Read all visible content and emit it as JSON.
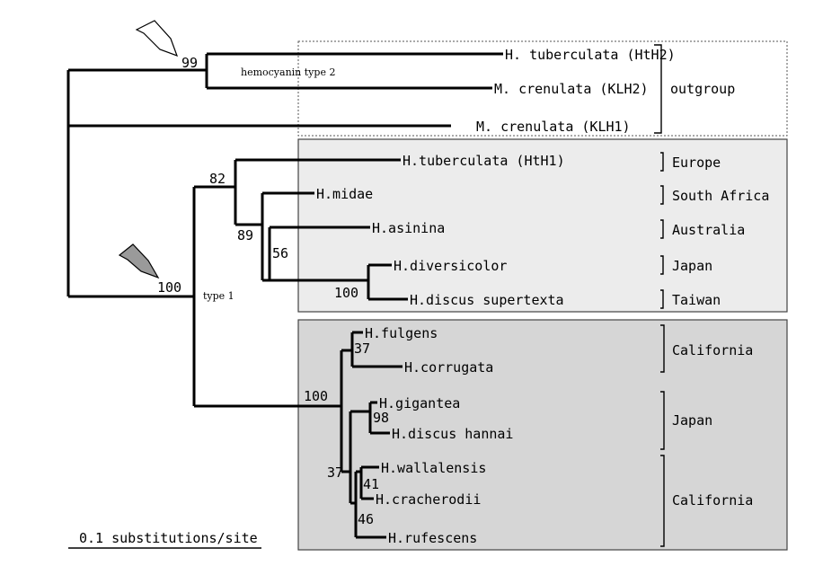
{
  "tree": {
    "taxa": [
      {
        "id": "htH2",
        "label": "H. tuberculata (HtH2)"
      },
      {
        "id": "klh2",
        "label": "M. crenulata (KLH2)"
      },
      {
        "id": "klh1",
        "label": "M. crenulata (KLH1)"
      },
      {
        "id": "htH1",
        "label": "H.tuberculata (HtH1)"
      },
      {
        "id": "midae",
        "label": "H.midae"
      },
      {
        "id": "asinina",
        "label": "H.asinina"
      },
      {
        "id": "diversicolor",
        "label": "H.diversicolor"
      },
      {
        "id": "supertexta",
        "label": "H.discus supertexta"
      },
      {
        "id": "fulgens",
        "label": "H.fulgens"
      },
      {
        "id": "corrugata",
        "label": "H.corrugata"
      },
      {
        "id": "gigantea",
        "label": "H.gigantea"
      },
      {
        "id": "hannai",
        "label": "H.discus hannai"
      },
      {
        "id": "wallalensis",
        "label": "H.wallalensis"
      },
      {
        "id": "cracherodii",
        "label": "H.cracherodii"
      },
      {
        "id": "rufescens",
        "label": "H.rufescens"
      }
    ],
    "bootstrap": {
      "outgroup_node": "99",
      "type1_root": "100",
      "node_europe": "82",
      "node_midae": "89",
      "node_asinina": "56",
      "node_japan_taiwan": "100",
      "node_pacific": "100",
      "node_fulgens": "37",
      "node_gigantea": "98",
      "node_lower": "37",
      "node_wallalensis": "41",
      "node_cracherodii": "46"
    },
    "notes": {
      "hemocyanin_type2": "hemocyanin type 2",
      "type1": "type 1"
    },
    "regions": {
      "outgroup": "outgroup",
      "europe": "Europe",
      "south_africa": "South Africa",
      "australia": "Australia",
      "japan_upper": "Japan",
      "taiwan": "Taiwan",
      "california_upper": "California",
      "japan_lower": "Japan",
      "california_lower": "California"
    },
    "scale_bar": {
      "label": "0.1 substitutions/site",
      "value": 0.1
    }
  }
}
